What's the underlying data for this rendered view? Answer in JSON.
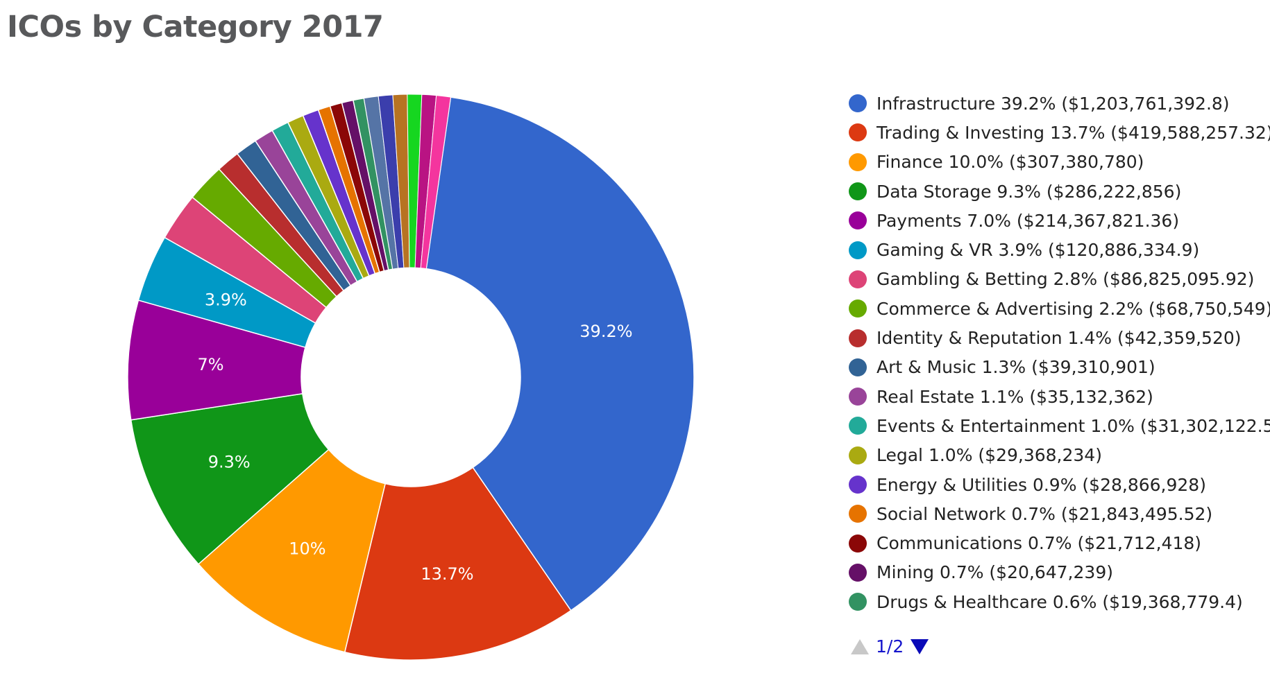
{
  "chart_data": {
    "type": "pie",
    "title": "ICOs by Category 2017",
    "donut": true,
    "legend_position": "right",
    "slices": [
      {
        "label": "Infrastructure",
        "percent": "39.2%",
        "value": 1203761392.8,
        "value_text": "$1,203,761,392.8",
        "color": "#3366cc",
        "slice_label": "39.2%"
      },
      {
        "label": "Trading & Investing",
        "percent": "13.7%",
        "value": 419588257.32,
        "value_text": "$419,588,257.32",
        "color": "#dc3912",
        "slice_label": "13.7%"
      },
      {
        "label": "Finance",
        "percent": "10.0%",
        "value": 307380780,
        "value_text": "$307,380,780",
        "color": "#ff9900",
        "slice_label": "10%"
      },
      {
        "label": "Data Storage",
        "percent": "9.3%",
        "value": 286222856,
        "value_text": "$286,222,856",
        "color": "#109618",
        "slice_label": "9.3%"
      },
      {
        "label": "Payments",
        "percent": "7.0%",
        "value": 214367821.36,
        "value_text": "$214,367,821.36",
        "color": "#990099",
        "slice_label": "7%"
      },
      {
        "label": "Gaming & VR",
        "percent": "3.9%",
        "value": 120886334.9,
        "value_text": "$120,886,334.9",
        "color": "#0099c6",
        "slice_label": "3.9%"
      },
      {
        "label": "Gambling & Betting",
        "percent": "2.8%",
        "value": 86825095.92,
        "value_text": "$86,825,095.92",
        "color": "#dd4477",
        "slice_label": ""
      },
      {
        "label": "Commerce & Advertising",
        "percent": "2.2%",
        "value": 68750549,
        "value_text": "$68,750,549",
        "color": "#66aa00",
        "slice_label": ""
      },
      {
        "label": "Identity & Reputation",
        "percent": "1.4%",
        "value": 42359520,
        "value_text": "$42,359,520",
        "color": "#b82e2e",
        "slice_label": ""
      },
      {
        "label": "Art & Music",
        "percent": "1.3%",
        "value": 39310901,
        "value_text": "$39,310,901",
        "color": "#316395",
        "slice_label": ""
      },
      {
        "label": "Real Estate",
        "percent": "1.1%",
        "value": 35132362,
        "value_text": "$35,132,362",
        "color": "#994499",
        "slice_label": ""
      },
      {
        "label": "Events & Entertainment",
        "percent": "1.0%",
        "value": 31302122.5,
        "value_text": "$31,302,122.5",
        "color": "#22aa99",
        "slice_label": ""
      },
      {
        "label": "Legal",
        "percent": "1.0%",
        "value": 29368234,
        "value_text": "$29,368,234",
        "color": "#aaaa11",
        "slice_label": ""
      },
      {
        "label": "Energy & Utilities",
        "percent": "0.9%",
        "value": 28866928,
        "value_text": "$28,866,928",
        "color": "#6633cc",
        "slice_label": ""
      },
      {
        "label": "Social Network",
        "percent": "0.7%",
        "value": 21843495.52,
        "value_text": "$21,843,495.52",
        "color": "#e67300",
        "slice_label": ""
      },
      {
        "label": "Communications",
        "percent": "0.7%",
        "value": 21712418,
        "value_text": "$21,712,418",
        "color": "#8b0707",
        "slice_label": ""
      },
      {
        "label": "Mining",
        "percent": "0.7%",
        "value": 20647239,
        "value_text": "$20,647,239",
        "color": "#651067",
        "slice_label": ""
      },
      {
        "label": "Drugs & Healthcare",
        "percent": "0.6%",
        "value": 19368779.4,
        "value_text": "$19,368,779.4",
        "color": "#329262",
        "slice_label": ""
      }
    ],
    "other_slice_colors": [
      "#5574a6",
      "#3b3eac",
      "#b77322",
      "#16d620",
      "#b91383",
      "#f4359e"
    ]
  },
  "pager": {
    "text": "1/2",
    "prev_enabled": false,
    "next_enabled": true
  }
}
